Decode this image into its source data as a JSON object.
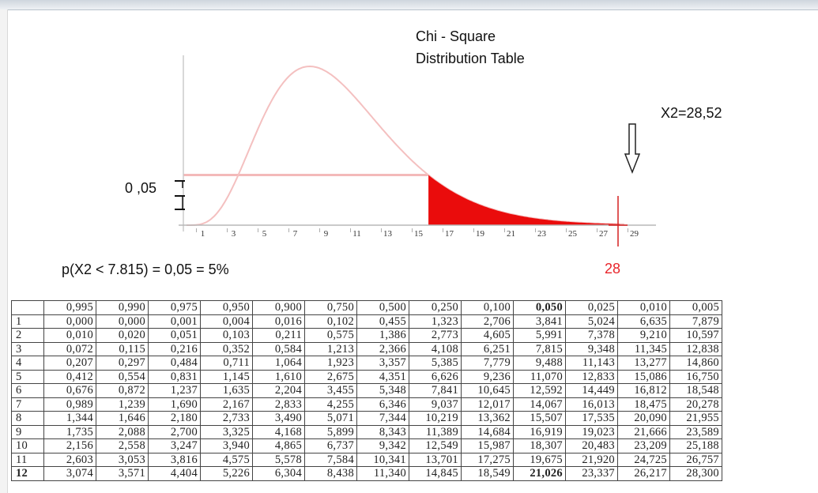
{
  "title": "Chi - Square",
  "subtitle": "Distribution Table",
  "annotations": {
    "alpha_label": "0 ,05",
    "probability_label": "p(X2 < 7.815) = 0,05 = 5%",
    "statistic_label": "X2=28,52",
    "marker_value_label": "28",
    "arrow_icon": "down-arrow-icon"
  },
  "colors": {
    "curve": "#f4c0c0",
    "tail_fill": "#ea0c0c",
    "marker_line": "#d42020",
    "axis": "#cccccc"
  },
  "chart_data": {
    "type": "area",
    "title": "Chi - Square Distribution Table",
    "xlabel": "",
    "ylabel": "",
    "x_tick_labels": [
      "1",
      "3",
      "5",
      "7",
      "9",
      "11",
      "13",
      "15",
      "17",
      "19",
      "21",
      "23",
      "25",
      "27",
      "29"
    ],
    "xlim": [
      0,
      29
    ],
    "critical_value_x": 15.7,
    "shaded_region": "right tail from critical value",
    "marker_x": 28,
    "grid": false
  },
  "table": {
    "header": [
      "",
      "0,995",
      "0,990",
      "0,975",
      "0,950",
      "0,900",
      "0,750",
      "0,500",
      "0,250",
      "0,100",
      "0,050",
      "0,025",
      "0,010",
      "0,005"
    ],
    "rows": [
      [
        "1",
        "0,000",
        "0,000",
        "0,001",
        "0,004",
        "0,016",
        "0,102",
        "0,455",
        "1,323",
        "2,706",
        "3,841",
        "5,024",
        "6,635",
        "7,879"
      ],
      [
        "2",
        "0,010",
        "0,020",
        "0,051",
        "0,103",
        "0,211",
        "0,575",
        "1,386",
        "2,773",
        "4,605",
        "5,991",
        "7,378",
        "9,210",
        "10,597"
      ],
      [
        "3",
        "0,072",
        "0,115",
        "0,216",
        "0,352",
        "0,584",
        "1,213",
        "2,366",
        "4,108",
        "6,251",
        "7,815",
        "9,348",
        "11,345",
        "12,838"
      ],
      [
        "4",
        "0,207",
        "0,297",
        "0,484",
        "0,711",
        "1,064",
        "1,923",
        "3,357",
        "5,385",
        "7,779",
        "9,488",
        "11,143",
        "13,277",
        "14,860"
      ],
      [
        "5",
        "0,412",
        "0,554",
        "0,831",
        "1,145",
        "1,610",
        "2,675",
        "4,351",
        "6,626",
        "9,236",
        "11,070",
        "12,833",
        "15,086",
        "16,750"
      ],
      [
        "6",
        "0,676",
        "0,872",
        "1,237",
        "1,635",
        "2,204",
        "3,455",
        "5,348",
        "7,841",
        "10,645",
        "12,592",
        "14,449",
        "16,812",
        "18,548"
      ],
      [
        "7",
        "0,989",
        "1,239",
        "1,690",
        "2,167",
        "2,833",
        "4,255",
        "6,346",
        "9,037",
        "12,017",
        "14,067",
        "16,013",
        "18,475",
        "20,278"
      ],
      [
        "8",
        "1,344",
        "1,646",
        "2,180",
        "2,733",
        "3,490",
        "5,071",
        "7,344",
        "10,219",
        "13,362",
        "15,507",
        "17,535",
        "20,090",
        "21,955"
      ],
      [
        "9",
        "1,735",
        "2,088",
        "2,700",
        "3,325",
        "4,168",
        "5,899",
        "8,343",
        "11,389",
        "14,684",
        "16,919",
        "19,023",
        "21,666",
        "23,589"
      ],
      [
        "10",
        "2,156",
        "2,558",
        "3,247",
        "3,940",
        "4,865",
        "6,737",
        "9,342",
        "12,549",
        "15,987",
        "18,307",
        "20,483",
        "23,209",
        "25,188"
      ],
      [
        "11",
        "2,603",
        "3,053",
        "3,816",
        "4,575",
        "5,578",
        "7,584",
        "10,341",
        "13,701",
        "17,275",
        "19,675",
        "21,920",
        "24,725",
        "26,757"
      ],
      [
        "12",
        "3,074",
        "3,571",
        "4,404",
        "5,226",
        "6,304",
        "8,438",
        "11,340",
        "14,845",
        "18,549",
        "21,026",
        "23,337",
        "26,217",
        "28,300"
      ]
    ],
    "highlight_column": 10,
    "highlight_row": 12
  }
}
